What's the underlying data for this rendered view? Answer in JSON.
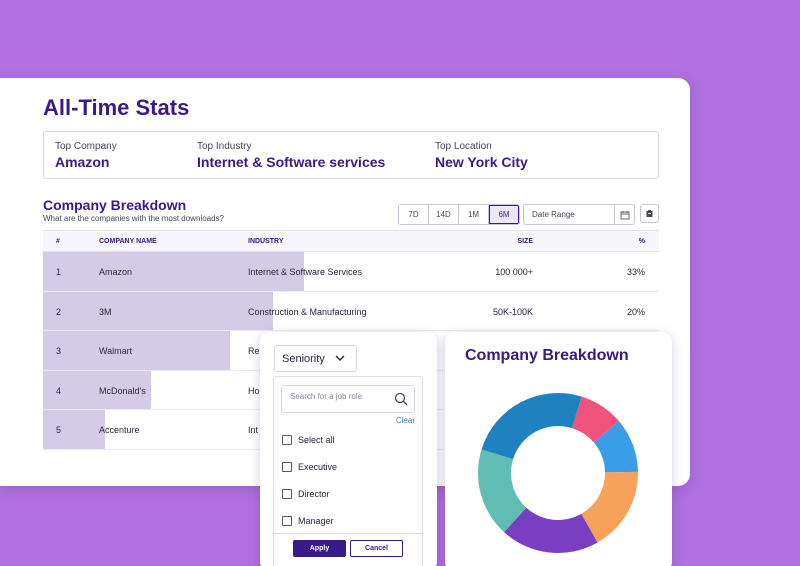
{
  "stats": {
    "title": "All-Time Stats",
    "summary": [
      {
        "label": "Top Company",
        "value": "Amazon"
      },
      {
        "label": "Top Industry",
        "value": "Internet & Software services"
      },
      {
        "label": "Top Location",
        "value": "New York City"
      }
    ]
  },
  "breakdown": {
    "title": "Company Breakdown",
    "subtitle": "What are the companies with the most downloads?",
    "ranges": [
      "7D",
      "14D",
      "1M",
      "6M"
    ],
    "active_range": "6M",
    "date_range_placeholder": "Date Range",
    "columns": [
      "#",
      "COMPANY NAME",
      "INDUSTRY",
      "SIZE",
      "%"
    ],
    "rows": [
      {
        "num": "1",
        "name": "Amazon",
        "industry": "Internet & Software Services",
        "size": "100 000+",
        "pct": "33%",
        "share": 0.423
      },
      {
        "num": "2",
        "name": "3M",
        "industry": "Construction & Manufacturing",
        "size": "50K-100K",
        "pct": "20%",
        "share": 0.373
      },
      {
        "num": "3",
        "name": "Walmart",
        "industry": "Re",
        "size": "",
        "pct": "",
        "share": 0.304
      },
      {
        "num": "4",
        "name": "McDonald's",
        "industry": "Ho",
        "size": "",
        "pct": "",
        "share": 0.175
      },
      {
        "num": "5",
        "name": "Accenture",
        "industry": "Int",
        "size": "",
        "pct": "",
        "share": 0.1
      }
    ]
  },
  "filter": {
    "seniority_label": "Seniority",
    "search_placeholder": "Search for a job role",
    "clear_label": "Clear",
    "options": [
      "Select all",
      "Executive",
      "Director",
      "Manager"
    ],
    "apply_label": "Apply",
    "cancel_label": "Cancel"
  },
  "chart_card": {
    "title": "Company Breakdown"
  },
  "chart_data": {
    "type": "pie",
    "title": "Company Breakdown",
    "slices": [
      {
        "value": 9,
        "color": "#f0537c"
      },
      {
        "value": 11,
        "color": "#3a9de8"
      },
      {
        "value": 17,
        "color": "#f6a25a"
      },
      {
        "value": 20,
        "color": "#7a3ec2"
      },
      {
        "value": 18,
        "color": "#61bdb4"
      },
      {
        "value": 25,
        "color": "#1f82c0"
      }
    ]
  }
}
